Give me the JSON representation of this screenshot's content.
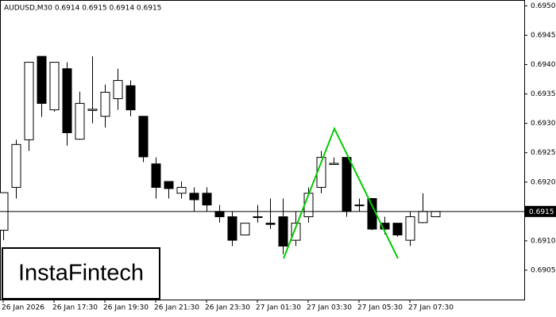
{
  "chart_data": {
    "type": "candlestick",
    "title": "AUDUSD,M30  0.6914 0.6915 0.6914 0.6915",
    "watermark": "InstaFintech",
    "categories": [
      "26 Jan 2026",
      null,
      null,
      null,
      "26 Jan 17:30",
      null,
      null,
      null,
      "26 Jan 19:30",
      null,
      null,
      null,
      "26 Jan 21:30",
      null,
      null,
      null,
      "26 Jan 23:30",
      null,
      null,
      null,
      "27 Jan 01:30",
      null,
      null,
      null,
      "27 Jan 03:30",
      null,
      null,
      null,
      "27 Jan 05:30",
      null,
      null,
      null,
      "27 Jan 07:30",
      null,
      null
    ],
    "open": [
      0.69118,
      0.69191,
      0.69272,
      0.69414,
      0.69323,
      0.69393,
      0.69273,
      0.69322,
      0.69312,
      0.69342,
      0.69364,
      0.69312,
      0.69231,
      0.69201,
      0.69181,
      0.69181,
      0.69181,
      0.6915,
      0.69141,
      0.6911,
      0.69141,
      0.6913,
      0.69141,
      0.69101,
      0.69141,
      0.69191,
      0.6923,
      0.69242,
      0.69161,
      0.69172,
      0.6913,
      0.6913,
      0.69101,
      0.69131,
      0.69141
    ],
    "high": [
      0.69182,
      0.69272,
      0.69404,
      0.69414,
      0.69404,
      0.69404,
      0.69354,
      0.69414,
      0.69366,
      0.69393,
      0.69373,
      0.69312,
      0.69242,
      0.69201,
      0.69201,
      0.69191,
      0.69191,
      0.69161,
      0.6915,
      0.6913,
      0.69161,
      0.69172,
      0.69172,
      0.6915,
      0.69191,
      0.69253,
      0.69242,
      0.69242,
      0.69172,
      0.69172,
      0.69141,
      0.6913,
      0.6915,
      0.69181,
      0.6915
    ],
    "low": [
      0.69101,
      0.69172,
      0.69253,
      0.69311,
      0.6932,
      0.69262,
      0.69272,
      0.693,
      0.69293,
      0.69323,
      0.69312,
      0.69234,
      0.69172,
      0.69172,
      0.69172,
      0.6915,
      0.6915,
      0.69131,
      0.69091,
      0.6911,
      0.69131,
      0.6912,
      0.69077,
      0.69091,
      0.69131,
      0.69181,
      0.6923,
      0.69141,
      0.6915,
      0.69118,
      0.69111,
      0.69107,
      0.69091,
      0.6913,
      0.69141
    ],
    "close": [
      0.69182,
      0.69264,
      0.69404,
      0.69334,
      0.69404,
      0.69284,
      0.69334,
      0.69324,
      0.69353,
      0.69373,
      0.69323,
      0.69243,
      0.69191,
      0.69189,
      0.69191,
      0.6917,
      0.69161,
      0.69141,
      0.69101,
      0.6913,
      0.69141,
      0.69128,
      0.69091,
      0.6913,
      0.69181,
      0.69242,
      0.69232,
      0.6915,
      0.69161,
      0.6912,
      0.6912,
      0.6911,
      0.69141,
      0.6915,
      0.6915
    ],
    "up_color": "#ffffff",
    "down_color": "#000000",
    "ylim": [
      0.69,
      0.6951
    ],
    "yticks": [
      {
        "value": 0.6905,
        "label": "0.6905"
      },
      {
        "value": 0.691,
        "label": "0.6910"
      },
      {
        "value": 0.6915,
        "label": "0.6915"
      },
      {
        "value": 0.692,
        "label": "0.6920"
      },
      {
        "value": 0.6925,
        "label": "0.6925"
      },
      {
        "value": 0.693,
        "label": "0.6930"
      },
      {
        "value": 0.6935,
        "label": "0.6935"
      },
      {
        "value": 0.694,
        "label": "0.6940"
      },
      {
        "value": 0.6945,
        "label": "0.6945"
      },
      {
        "value": 0.695,
        "label": "0.6950"
      }
    ],
    "current_price": 0.6915,
    "pattern": {
      "color": "#00cc00",
      "x": [
        22,
        26,
        31
      ],
      "values": [
        0.6907,
        0.69291,
        0.6907
      ]
    }
  }
}
